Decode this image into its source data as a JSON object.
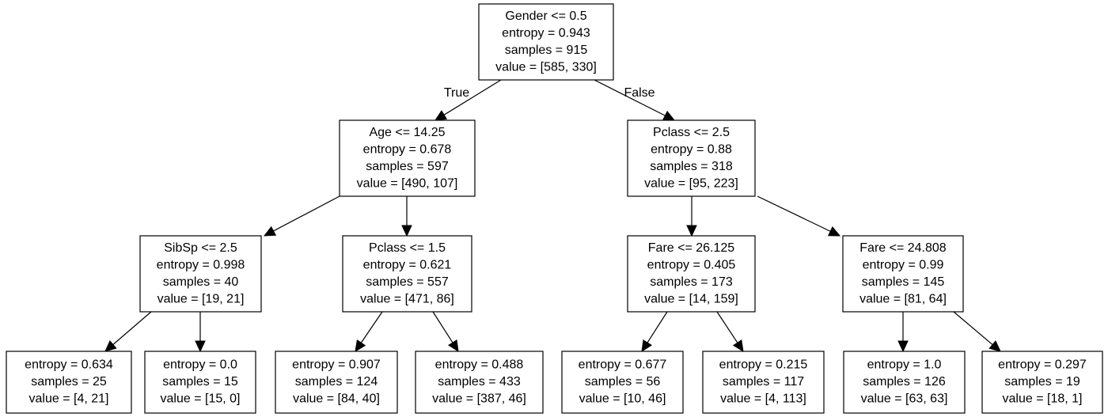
{
  "tree": {
    "nodes": [
      {
        "id": "n0",
        "lines": [
          "Gender <= 0.5",
          "entropy = 0.943",
          "samples = 915",
          "value = [585, 330]"
        ]
      },
      {
        "id": "n1",
        "lines": [
          "Age <= 14.25",
          "entropy = 0.678",
          "samples = 597",
          "value = [490, 107]"
        ]
      },
      {
        "id": "n2",
        "lines": [
          "Pclass <= 2.5",
          "entropy = 0.88",
          "samples = 318",
          "value = [95, 223]"
        ]
      },
      {
        "id": "n3",
        "lines": [
          "SibSp <= 2.5",
          "entropy = 0.998",
          "samples = 40",
          "value = [19, 21]"
        ]
      },
      {
        "id": "n4",
        "lines": [
          "Pclass <= 1.5",
          "entropy = 0.621",
          "samples = 557",
          "value = [471, 86]"
        ]
      },
      {
        "id": "n5",
        "lines": [
          "Fare <= 26.125",
          "entropy = 0.405",
          "samples = 173",
          "value = [14, 159]"
        ]
      },
      {
        "id": "n6",
        "lines": [
          "Fare <= 24.808",
          "entropy = 0.99",
          "samples = 145",
          "value = [81, 64]"
        ]
      },
      {
        "id": "n7",
        "lines": [
          "entropy = 0.634",
          "samples = 25",
          "value = [4, 21]"
        ]
      },
      {
        "id": "n8",
        "lines": [
          "entropy = 0.0",
          "samples = 15",
          "value = [15, 0]"
        ]
      },
      {
        "id": "n9",
        "lines": [
          "entropy = 0.907",
          "samples = 124",
          "value = [84, 40]"
        ]
      },
      {
        "id": "n10",
        "lines": [
          "entropy = 0.488",
          "samples = 433",
          "value = [387, 46]"
        ]
      },
      {
        "id": "n11",
        "lines": [
          "entropy = 0.677",
          "samples = 56",
          "value = [10, 46]"
        ]
      },
      {
        "id": "n12",
        "lines": [
          "entropy = 0.215",
          "samples = 117",
          "value = [4, 113]"
        ]
      },
      {
        "id": "n13",
        "lines": [
          "entropy = 1.0",
          "samples = 126",
          "value = [63, 63]"
        ]
      },
      {
        "id": "n14",
        "lines": [
          "entropy = 0.297",
          "samples = 19",
          "value = [18, 1]"
        ]
      }
    ],
    "edges": [
      {
        "from": "n0",
        "to": "n1",
        "label": "True"
      },
      {
        "from": "n0",
        "to": "n2",
        "label": "False"
      },
      {
        "from": "n1",
        "to": "n3",
        "label": ""
      },
      {
        "from": "n1",
        "to": "n4",
        "label": ""
      },
      {
        "from": "n2",
        "to": "n5",
        "label": ""
      },
      {
        "from": "n2",
        "to": "n6",
        "label": ""
      },
      {
        "from": "n3",
        "to": "n7",
        "label": ""
      },
      {
        "from": "n3",
        "to": "n8",
        "label": ""
      },
      {
        "from": "n4",
        "to": "n9",
        "label": ""
      },
      {
        "from": "n4",
        "to": "n10",
        "label": ""
      },
      {
        "from": "n5",
        "to": "n11",
        "label": ""
      },
      {
        "from": "n5",
        "to": "n12",
        "label": ""
      },
      {
        "from": "n6",
        "to": "n13",
        "label": ""
      },
      {
        "from": "n6",
        "to": "n14",
        "label": ""
      }
    ]
  }
}
